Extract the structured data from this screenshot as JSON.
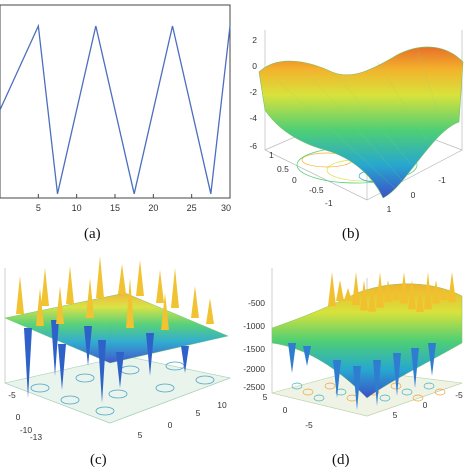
{
  "chart_data": [
    {
      "panel": "a",
      "type": "line",
      "caption": "(a)",
      "x": [
        0,
        5,
        7.5,
        12.5,
        17.5,
        22.5,
        27.5,
        30
      ],
      "y": [
        0.0,
        1.0,
        -1.0,
        1.0,
        -1.0,
        1.0,
        -1.0,
        1.0
      ],
      "xlim": [
        0,
        30
      ],
      "ylim": [
        -1.05,
        1.25
      ],
      "xticks": [
        5,
        10,
        15,
        20,
        25,
        30
      ],
      "line_color": "#4a6fbf",
      "grid": false
    },
    {
      "panel": "b",
      "type": "surface",
      "caption": "(b)",
      "zticks": [
        "2",
        "0",
        "-2",
        "-4",
        "-6"
      ],
      "yticks": [
        "1",
        "0.5",
        "0",
        "-0.5",
        "-1"
      ],
      "xticks": [
        "1",
        "0",
        "-1"
      ],
      "colormap": [
        "#3b50c8",
        "#27a8cf",
        "#4fcf74",
        "#d8e23c",
        "#f3b32c",
        "#e7702a"
      ]
    },
    {
      "panel": "c",
      "type": "surface",
      "caption": "(c)",
      "yticks": [
        "0",
        "-5",
        "-10",
        "-13"
      ],
      "xticks": [
        "5",
        "0",
        "5",
        "10"
      ],
      "colormap": [
        "#3b50c8",
        "#27a8cf",
        "#4fcf74",
        "#d8e23c",
        "#f3b32c"
      ]
    },
    {
      "panel": "d",
      "type": "surface",
      "caption": "(d)",
      "zticks": [
        "-500",
        "-1000",
        "-1500",
        "-2000",
        "-2500"
      ],
      "yticks": [
        "5",
        "0",
        "-5"
      ],
      "xticks": [
        "5",
        "0",
        "-5"
      ],
      "colormap": [
        "#3b50c8",
        "#27a8cf",
        "#4fcf74",
        "#d8e23c",
        "#f3b32c",
        "#e7702a"
      ]
    }
  ]
}
